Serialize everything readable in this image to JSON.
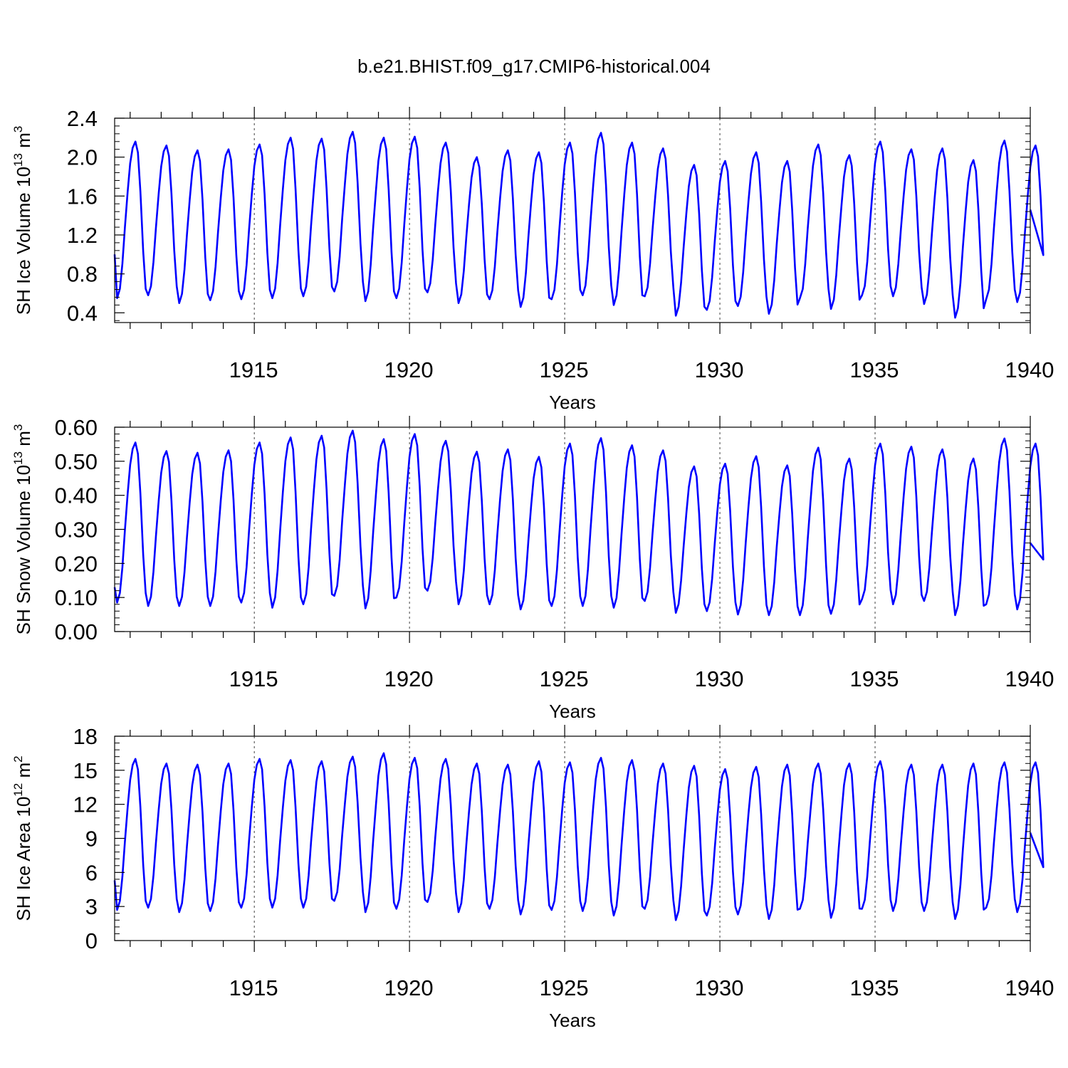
{
  "title": "b.e21.BHIST.f09_g17.CMIP6-historical.004",
  "colors": {
    "series": "#0000ff",
    "axes": "#000000",
    "grid": "#000000"
  },
  "chart_data": [
    {
      "type": "line",
      "series_name": "SH Ice Volume",
      "ylabel": {
        "text": "SH Ice Volume 10",
        "exp": "13",
        "unit": " m",
        "unit_exp": "3"
      },
      "xlabel": "Years",
      "xlim": [
        1910.5,
        1940.0
      ],
      "ylim": [
        0.3,
        2.4
      ],
      "yticks": [
        0.4,
        0.8,
        1.2,
        1.6,
        2.0,
        2.4
      ],
      "ytick_labels": [
        "0.4",
        "0.8",
        "1.2",
        "1.6",
        "2.0",
        "2.4"
      ],
      "xticks": [
        1915,
        1920,
        1925,
        1930,
        1935,
        1940
      ],
      "xtick_labels": [
        "1915",
        "1920",
        "1925",
        "1930",
        "1935",
        "1940"
      ],
      "vlines": [
        1915,
        1920,
        1925,
        1930,
        1935
      ],
      "start_year": 1910.5,
      "start_value": 1.0,
      "end_value": 1.46,
      "min_offset": -0.003,
      "yearly_min": [
        0.55,
        0.58,
        0.5,
        0.53,
        0.54,
        0.55,
        0.57,
        0.62,
        0.52,
        0.55,
        0.61,
        0.5,
        0.54,
        0.46,
        0.54,
        0.58,
        0.48,
        0.57,
        0.37,
        0.43,
        0.47,
        0.39,
        0.55,
        0.44,
        0.58,
        0.57,
        0.49,
        0.35,
        0.54,
        0.51
      ],
      "yearly_max": [
        2.16,
        2.12,
        2.07,
        2.08,
        2.13,
        2.2,
        2.19,
        2.26,
        2.2,
        2.21,
        2.15,
        2.0,
        2.07,
        2.05,
        2.15,
        2.25,
        2.15,
        2.09,
        1.92,
        1.96,
        2.05,
        1.96,
        2.13,
        2.02,
        2.16,
        2.08,
        2.09,
        1.97,
        2.17,
        2.12
      ]
    },
    {
      "type": "line",
      "series_name": "SH Snow Volume",
      "ylabel": {
        "text": "SH Snow Volume 10",
        "exp": "13",
        "unit": " m",
        "unit_exp": "3"
      },
      "xlabel": "Years",
      "xlim": [
        1910.5,
        1940.0
      ],
      "ylim": [
        0.0,
        0.6
      ],
      "yticks": [
        0.0,
        0.1,
        0.2,
        0.3,
        0.4,
        0.5,
        0.6
      ],
      "ytick_labels": [
        "0.00",
        "0.10",
        "0.20",
        "0.30",
        "0.40",
        "0.50",
        "0.60"
      ],
      "xticks": [
        1915,
        1920,
        1925,
        1930,
        1935,
        1940
      ],
      "xtick_labels": [
        "1915",
        "1920",
        "1925",
        "1930",
        "1935",
        "1940"
      ],
      "vlines": [
        1915,
        1920,
        1925,
        1930,
        1935
      ],
      "start_year": 1910.5,
      "start_value": 0.13,
      "end_value": 0.26,
      "min_offset": -0.003,
      "yearly_min": [
        0.085,
        0.075,
        0.075,
        0.075,
        0.085,
        0.07,
        0.08,
        0.105,
        0.068,
        0.1,
        0.12,
        0.08,
        0.08,
        0.065,
        0.075,
        0.075,
        0.07,
        0.09,
        0.055,
        0.06,
        0.05,
        0.048,
        0.048,
        0.052,
        0.095,
        0.08,
        0.09,
        0.048,
        0.08,
        0.065
      ],
      "yearly_max": [
        0.555,
        0.53,
        0.525,
        0.532,
        0.555,
        0.57,
        0.575,
        0.59,
        0.565,
        0.58,
        0.56,
        0.528,
        0.535,
        0.513,
        0.552,
        0.568,
        0.547,
        0.532,
        0.485,
        0.493,
        0.515,
        0.488,
        0.54,
        0.508,
        0.552,
        0.543,
        0.535,
        0.508,
        0.567,
        0.552
      ]
    },
    {
      "type": "line",
      "series_name": "SH Ice Area",
      "ylabel": {
        "text": "SH Ice Area 10",
        "exp": "12",
        "unit": " m",
        "unit_exp": "2"
      },
      "xlabel": "Years",
      "xlim": [
        1910.5,
        1940.0
      ],
      "ylim": [
        0,
        18
      ],
      "yticks": [
        0,
        3,
        6,
        9,
        12,
        15,
        18
      ],
      "ytick_labels": [
        "0",
        "3",
        "6",
        "9",
        "12",
        "15",
        "18"
      ],
      "xticks": [
        1915,
        1920,
        1925,
        1930,
        1935,
        1940
      ],
      "xtick_labels": [
        "1915",
        "1920",
        "1925",
        "1930",
        "1935",
        "1940"
      ],
      "vlines": [
        1915,
        1920,
        1925,
        1930,
        1935
      ],
      "start_year": 1910.5,
      "start_value": 5.3,
      "end_value": 9.5,
      "min_offset": -0.05,
      "yearly_min": [
        2.7,
        2.9,
        2.5,
        2.6,
        2.9,
        2.9,
        2.9,
        3.5,
        2.5,
        2.8,
        3.4,
        2.5,
        2.8,
        2.3,
        2.7,
        2.6,
        2.2,
        2.8,
        1.8,
        2.2,
        2.3,
        1.9,
        2.8,
        2.0,
        2.8,
        2.6,
        2.6,
        1.9,
        2.9,
        2.5
      ],
      "yearly_max": [
        16.0,
        15.6,
        15.5,
        15.6,
        16.0,
        15.9,
        15.8,
        16.2,
        16.5,
        16.1,
        16.0,
        15.6,
        15.5,
        15.8,
        15.7,
        16.1,
        15.9,
        15.6,
        15.4,
        15.1,
        15.3,
        15.5,
        15.6,
        15.6,
        15.8,
        15.5,
        15.5,
        15.6,
        15.7,
        15.7
      ]
    }
  ]
}
